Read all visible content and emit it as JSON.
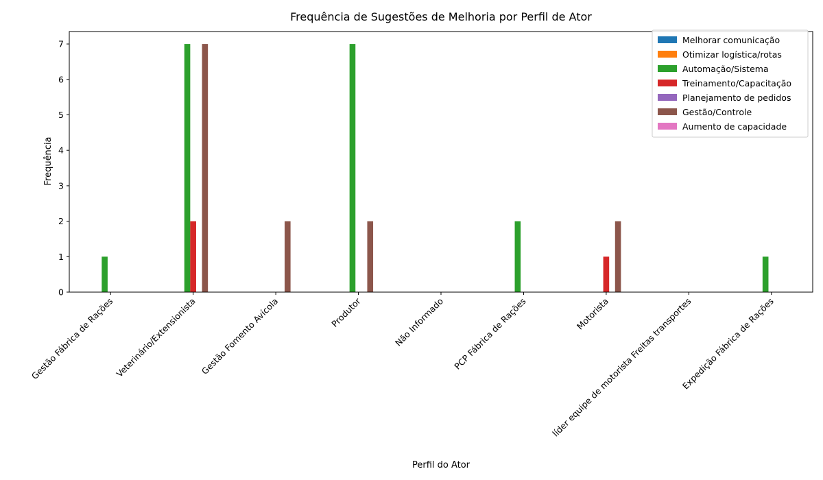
{
  "chart_data": {
    "type": "bar",
    "title": "Frequência de Sugestões de Melhoria por Perfil de Ator",
    "xlabel": "Perfil do Ator",
    "ylabel": "Frequência",
    "ylim": [
      0,
      7.35
    ],
    "yticks": [
      0,
      1,
      2,
      3,
      4,
      5,
      6,
      7
    ],
    "grid": false,
    "legend_position": "top-right",
    "categories": [
      "Gestão Fábrica de Rações",
      "Veterinário/Extensionista",
      "Gestão Fomento Avícola",
      "Produtor",
      "Não Informado",
      "PCP Fábrica de Rações",
      "Motorista",
      "líder equipe de motorista Freitas transportes",
      "Expedição Fábrica de Rações"
    ],
    "series": [
      {
        "name": "Melhorar comunicação",
        "color": "#1f77b4",
        "values": [
          0,
          0,
          0,
          0,
          0,
          0,
          0,
          0,
          0
        ]
      },
      {
        "name": "Otimizar logística/rotas",
        "color": "#ff7f0e",
        "values": [
          0,
          0,
          0,
          0,
          0,
          0,
          0,
          0,
          0
        ]
      },
      {
        "name": "Automação/Sistema",
        "color": "#2ca02c",
        "values": [
          1,
          7,
          0,
          7,
          0,
          2,
          0,
          0,
          1
        ]
      },
      {
        "name": "Treinamento/Capacitação",
        "color": "#d62728",
        "values": [
          0,
          2,
          0,
          0,
          0,
          0,
          1,
          0,
          0
        ]
      },
      {
        "name": "Planejamento de pedidos",
        "color": "#9467bd",
        "values": [
          0,
          0,
          0,
          0,
          0,
          0,
          0,
          0,
          0
        ]
      },
      {
        "name": "Gestão/Controle",
        "color": "#8c564b",
        "values": [
          0,
          7,
          2,
          2,
          0,
          0,
          2,
          0,
          0
        ]
      },
      {
        "name": "Aumento de capacidade",
        "color": "#e377c2",
        "values": [
          0,
          0,
          0,
          0,
          0,
          0,
          0,
          0,
          0
        ]
      }
    ]
  }
}
